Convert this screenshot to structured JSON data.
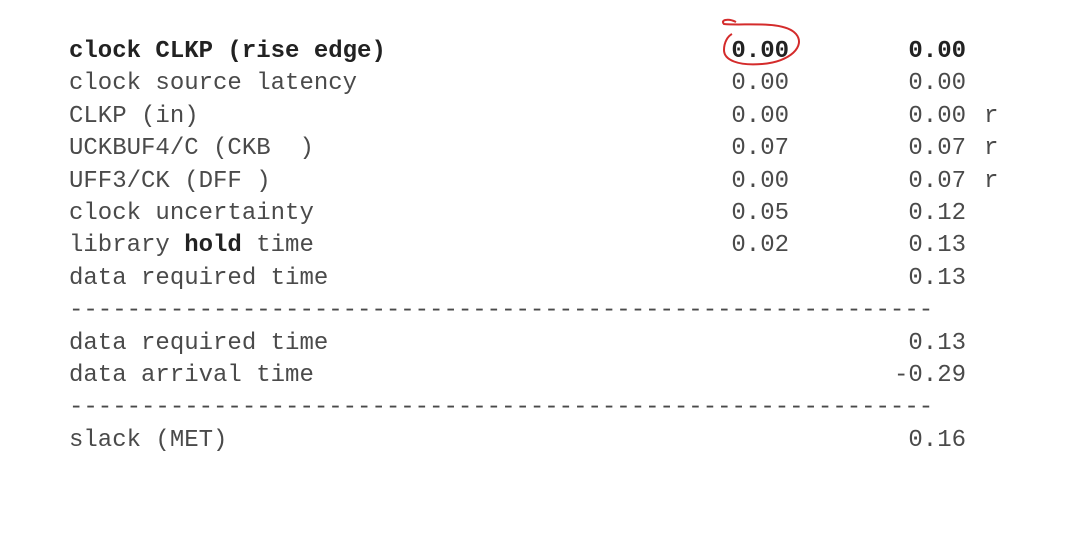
{
  "report": {
    "rows": [
      {
        "label_pre": "clock CLKP (rise edge)",
        "label_bold": "",
        "label_post": "",
        "incr": "0.00",
        "path": "0.00",
        "flag": "",
        "bold_row": true
      },
      {
        "label_pre": "clock source latency",
        "label_bold": "",
        "label_post": "",
        "incr": "0.00",
        "path": "0.00",
        "flag": "",
        "bold_row": false
      },
      {
        "label_pre": "CLKP (in)",
        "label_bold": "",
        "label_post": "",
        "incr": "0.00",
        "path": "0.00",
        "flag": "r",
        "bold_row": false
      },
      {
        "label_pre": "UCKBUF4/C (CKB  )",
        "label_bold": "",
        "label_post": "",
        "incr": "0.07",
        "path": "0.07",
        "flag": "r",
        "bold_row": false
      },
      {
        "label_pre": "UFF3/CK (DFF )",
        "label_bold": "",
        "label_post": "",
        "incr": "0.00",
        "path": "0.07",
        "flag": "r",
        "bold_row": false
      },
      {
        "label_pre": "clock uncertainty",
        "label_bold": "",
        "label_post": "",
        "incr": "0.05",
        "path": "0.12",
        "flag": "",
        "bold_row": false
      },
      {
        "label_pre": "library ",
        "label_bold": "hold",
        "label_post": " time",
        "incr": "0.02",
        "path": "0.13",
        "flag": "",
        "bold_row": false
      },
      {
        "label_pre": "data required time",
        "label_bold": "",
        "label_post": "",
        "incr": "",
        "path": "0.13",
        "flag": "",
        "bold_row": false
      }
    ],
    "separator": "------------------------------------------------------------",
    "summary_rows": [
      {
        "label": "data required time",
        "path": "0.13"
      },
      {
        "label": "data arrival time",
        "path": "-0.29"
      }
    ],
    "slack": {
      "label": "slack (MET)",
      "path": "0.16"
    }
  },
  "annotation": {
    "color": "#d42b2b",
    "shape": "hand-drawn circle around first incr value"
  }
}
